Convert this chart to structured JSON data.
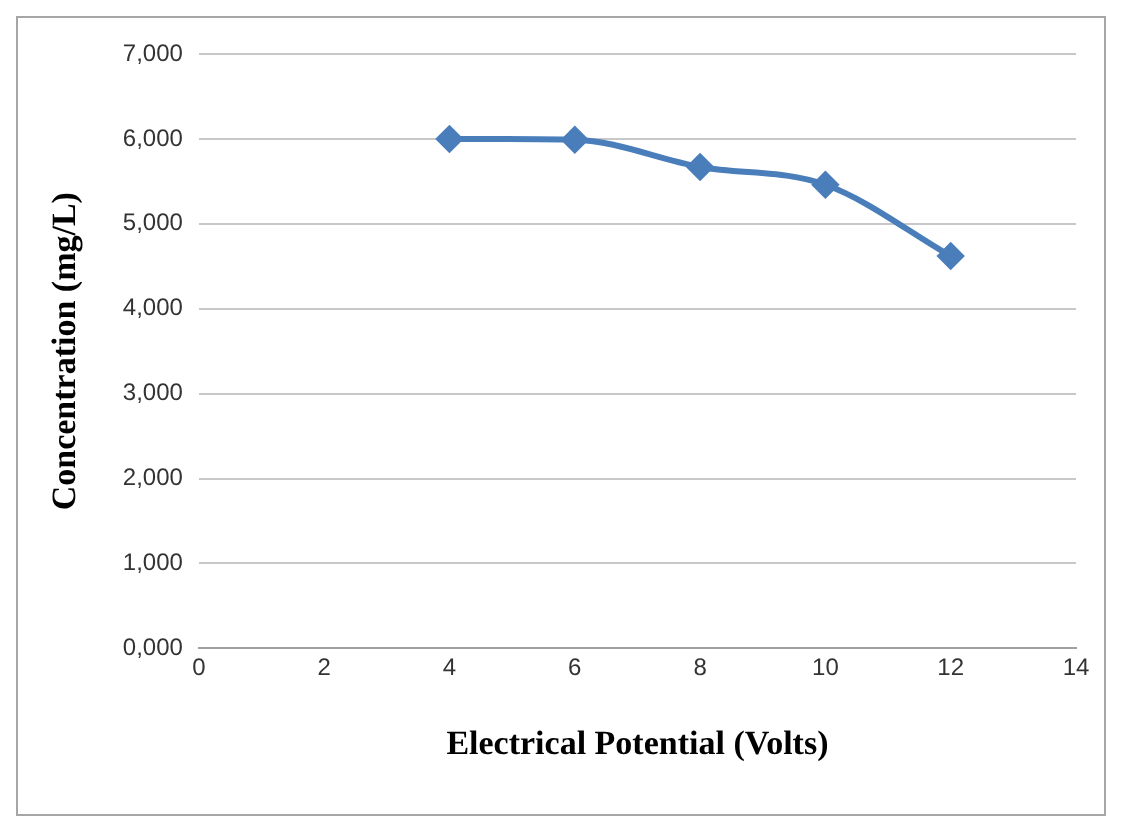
{
  "chart_data": {
    "type": "line",
    "xlabel": "Electrical Potential (Volts)",
    "ylabel": "Concentration (mg/L)",
    "x": [
      4,
      6,
      8,
      10,
      12
    ],
    "series": [
      {
        "color": "#4a7ebb",
        "values": [
          6000,
          5990,
          5670,
          5460,
          4620
        ]
      }
    ],
    "xlim": [
      0,
      14
    ],
    "xticks": [
      0,
      2,
      4,
      6,
      8,
      10,
      12,
      14
    ],
    "ylim": [
      0,
      7000
    ],
    "yticks": [
      {
        "value": 0,
        "label": "0,000"
      },
      {
        "value": 1000,
        "label": "1,000"
      },
      {
        "value": 2000,
        "label": "2,000"
      },
      {
        "value": 3000,
        "label": "3,000"
      },
      {
        "value": 4000,
        "label": "4,000"
      },
      {
        "value": 5000,
        "label": "5,000"
      },
      {
        "value": 6000,
        "label": "6,000"
      },
      {
        "value": 7000,
        "label": "7,000"
      }
    ],
    "grid": "y",
    "legend": false,
    "marker": "diamond",
    "line_style": "solid"
  }
}
